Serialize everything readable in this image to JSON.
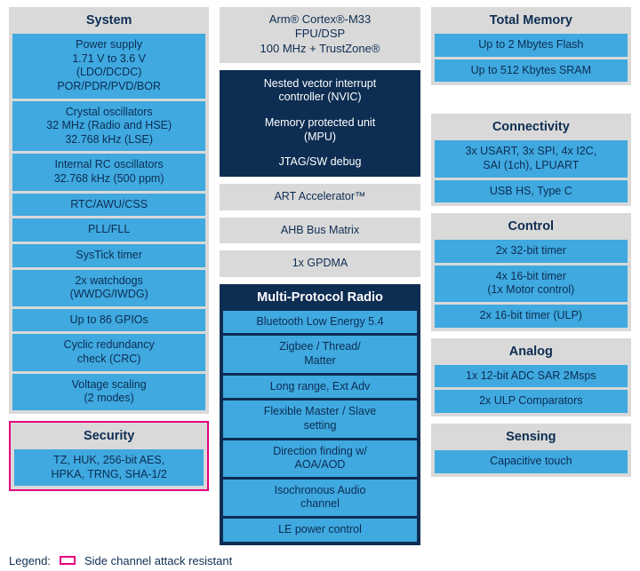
{
  "colors": {
    "cell_blue": "#3fa9e0",
    "panel_gray": "#d9d9d9",
    "navy": "#0d2d52",
    "magenta": "#e6007e",
    "text_navy": "#0d2d52",
    "white": "#ffffff"
  },
  "col1": {
    "system": {
      "title": "System",
      "items": [
        "Power supply\n1.71 V to 3.6 V\n(LDO/DCDC)\nPOR/PDR/PVD/BOR",
        "Crystal oscillators\n32 MHz (Radio and HSE)\n32.768 kHz (LSE)",
        "Internal RC oscillators\n32.768 kHz (500 ppm)",
        "RTC/AWU/CSS",
        "PLL/FLL",
        "SysTick timer",
        "2x watchdogs\n(WWDG/IWDG)",
        "Up to 86 GPIOs",
        "Cyclic redundancy\ncheck (CRC)",
        "Voltage scaling\n(2 modes)"
      ]
    },
    "security": {
      "title": "Security",
      "items": [
        "TZ, HUK, 256-bit AES,\nHPKA, TRNG, SHA-1/2"
      ]
    }
  },
  "col2": {
    "cortex": "Arm® Cortex®-M33\nFPU/DSP\n100 MHz + TrustZone®",
    "core_block": [
      "Nested vector interrupt\ncontroller (NVIC)",
      "Memory protected unit\n(MPU)",
      "JTAG/SW debug"
    ],
    "standalone": [
      "ART Accelerator™",
      "AHB Bus Matrix",
      "1x GPDMA"
    ],
    "radio": {
      "title": "Multi-Protocol Radio",
      "items": [
        "Bluetooth Low Energy 5.4",
        "Zigbee / Thread/\nMatter",
        "Long range, Ext Adv",
        "Flexible Master / Slave\nsetting",
        "Direction finding w/\nAOA/AOD",
        "Isochronous Audio\nchannel",
        "LE power control"
      ]
    }
  },
  "col3": {
    "memory": {
      "title": "Total Memory",
      "items": [
        "Up to 2 Mbytes Flash",
        "Up to 512 Kbytes SRAM"
      ]
    },
    "connectivity": {
      "title": "Connectivity",
      "items": [
        "3x USART, 3x SPI, 4x I2C,\nSAI (1ch), LPUART",
        "USB HS, Type C"
      ]
    },
    "control": {
      "title": "Control",
      "items": [
        "2x 32-bit timer",
        "4x 16-bit timer\n(1x Motor control)",
        "2x 16-bit timer (ULP)"
      ]
    },
    "analog": {
      "title": "Analog",
      "items": [
        "1x 12-bit ADC SAR 2Msps",
        "2x ULP Comparators"
      ]
    },
    "sensing": {
      "title": "Sensing",
      "items": [
        "Capacitive touch"
      ]
    }
  },
  "legend": {
    "label": "Legend:",
    "swatch_text": "Side channel attack resistant"
  }
}
